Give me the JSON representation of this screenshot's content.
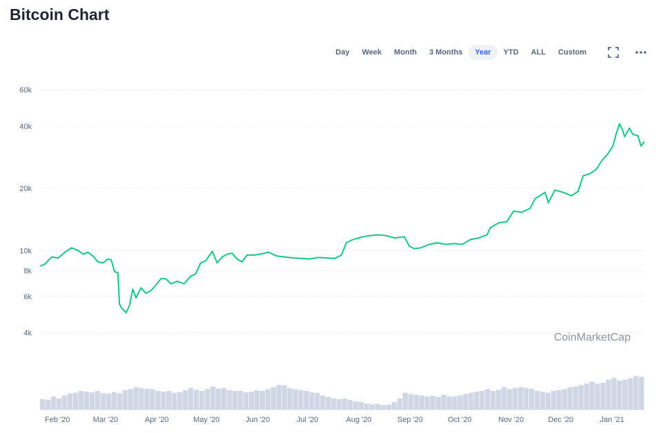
{
  "page": {
    "title": "Bitcoin Chart"
  },
  "toolbar": {
    "ranges": [
      {
        "label": "Day",
        "active": false
      },
      {
        "label": "Week",
        "active": false
      },
      {
        "label": "Month",
        "active": false
      },
      {
        "label": "3 Months",
        "active": false
      },
      {
        "label": "Year",
        "active": true
      },
      {
        "label": "YTD",
        "active": false
      },
      {
        "label": "ALL",
        "active": false
      },
      {
        "label": "Custom",
        "active": false
      }
    ],
    "fullscreen_icon": "fullscreen-icon",
    "more_icon": "more-options-icon"
  },
  "chart_data": {
    "type": "line",
    "title": "",
    "xlabel": "",
    "ylabel": "",
    "y_scale": "log",
    "ylim": [
      3000,
      70000
    ],
    "xlim": [
      "2020-01-24",
      "2021-01-23"
    ],
    "y_ticks": [
      {
        "value": 4000,
        "label": "4k"
      },
      {
        "value": 6000,
        "label": "6k"
      },
      {
        "value": 8000,
        "label": "8k"
      },
      {
        "value": 10000,
        "label": "10k"
      },
      {
        "value": 20000,
        "label": "20k"
      },
      {
        "value": 40000,
        "label": "40k"
      },
      {
        "value": 60000,
        "label": "60k"
      }
    ],
    "x_ticks": [
      {
        "date": "2020-02-01",
        "label": "Feb '20"
      },
      {
        "date": "2020-03-01",
        "label": "Mar '20"
      },
      {
        "date": "2020-04-01",
        "label": "Apr '20"
      },
      {
        "date": "2020-05-01",
        "label": "May '20"
      },
      {
        "date": "2020-06-01",
        "label": "Jun '20"
      },
      {
        "date": "2020-07-01",
        "label": "Jul '20"
      },
      {
        "date": "2020-08-01",
        "label": "Aug '20"
      },
      {
        "date": "2020-09-01",
        "label": "Sep '20"
      },
      {
        "date": "2020-10-01",
        "label": "Oct '20"
      },
      {
        "date": "2020-11-01",
        "label": "Nov '20"
      },
      {
        "date": "2020-12-01",
        "label": "Dec '20"
      },
      {
        "date": "2021-01-01",
        "label": "Jan '21"
      }
    ],
    "grid": true,
    "line_color": "#16c784",
    "volume_color": "#cfd6e4",
    "watermark": "CoinMarketCap",
    "series": [
      {
        "points": [
          [
            "2020-01-24",
            8400
          ],
          [
            "2020-01-27",
            8600
          ],
          [
            "2020-01-31",
            9300
          ],
          [
            "2020-02-04",
            9200
          ],
          [
            "2020-02-08",
            9800
          ],
          [
            "2020-02-12",
            10300
          ],
          [
            "2020-02-16",
            10000
          ],
          [
            "2020-02-19",
            9600
          ],
          [
            "2020-02-22",
            9800
          ],
          [
            "2020-02-25",
            9400
          ],
          [
            "2020-02-28",
            8800
          ],
          [
            "2020-03-02",
            8700
          ],
          [
            "2020-03-05",
            9100
          ],
          [
            "2020-03-07",
            9000
          ],
          [
            "2020-03-09",
            7900
          ],
          [
            "2020-03-11",
            7800
          ],
          [
            "2020-03-12",
            5500
          ],
          [
            "2020-03-13",
            5300
          ],
          [
            "2020-03-16",
            5000
          ],
          [
            "2020-03-18",
            5400
          ],
          [
            "2020-03-20",
            6500
          ],
          [
            "2020-03-22",
            5900
          ],
          [
            "2020-03-25",
            6600
          ],
          [
            "2020-03-28",
            6200
          ],
          [
            "2020-03-31",
            6400
          ],
          [
            "2020-04-03",
            6800
          ],
          [
            "2020-04-06",
            7300
          ],
          [
            "2020-04-09",
            7300
          ],
          [
            "2020-04-12",
            6900
          ],
          [
            "2020-04-16",
            7100
          ],
          [
            "2020-04-20",
            6900
          ],
          [
            "2020-04-24",
            7500
          ],
          [
            "2020-04-27",
            7700
          ],
          [
            "2020-04-30",
            8700
          ],
          [
            "2020-05-03",
            8900
          ],
          [
            "2020-05-07",
            9900
          ],
          [
            "2020-05-10",
            8700
          ],
          [
            "2020-05-13",
            9300
          ],
          [
            "2020-05-16",
            9600
          ],
          [
            "2020-05-19",
            9700
          ],
          [
            "2020-05-22",
            9100
          ],
          [
            "2020-05-25",
            8800
          ],
          [
            "2020-05-28",
            9500
          ],
          [
            "2020-06-01",
            9500
          ],
          [
            "2020-06-05",
            9600
          ],
          [
            "2020-06-10",
            9800
          ],
          [
            "2020-06-15",
            9400
          ],
          [
            "2020-06-20",
            9300
          ],
          [
            "2020-06-25",
            9200
          ],
          [
            "2020-06-30",
            9150
          ],
          [
            "2020-07-05",
            9100
          ],
          [
            "2020-07-10",
            9250
          ],
          [
            "2020-07-15",
            9200
          ],
          [
            "2020-07-20",
            9150
          ],
          [
            "2020-07-24",
            9500
          ],
          [
            "2020-07-27",
            10900
          ],
          [
            "2020-07-31",
            11300
          ],
          [
            "2020-08-05",
            11600
          ],
          [
            "2020-08-10",
            11800
          ],
          [
            "2020-08-15",
            11900
          ],
          [
            "2020-08-20",
            11800
          ],
          [
            "2020-08-25",
            11500
          ],
          [
            "2020-08-31",
            11650
          ],
          [
            "2020-09-03",
            10500
          ],
          [
            "2020-09-06",
            10200
          ],
          [
            "2020-09-10",
            10300
          ],
          [
            "2020-09-15",
            10700
          ],
          [
            "2020-09-20",
            10900
          ],
          [
            "2020-09-25",
            10700
          ],
          [
            "2020-09-30",
            10800
          ],
          [
            "2020-10-05",
            10700
          ],
          [
            "2020-10-10",
            11300
          ],
          [
            "2020-10-15",
            11500
          ],
          [
            "2020-10-20",
            11900
          ],
          [
            "2020-10-22",
            12900
          ],
          [
            "2020-10-27",
            13600
          ],
          [
            "2020-11-01",
            13800
          ],
          [
            "2020-11-05",
            15500
          ],
          [
            "2020-11-10",
            15300
          ],
          [
            "2020-11-15",
            16000
          ],
          [
            "2020-11-18",
            17800
          ],
          [
            "2020-11-24",
            19100
          ],
          [
            "2020-11-26",
            17000
          ],
          [
            "2020-11-30",
            19600
          ],
          [
            "2020-12-05",
            19100
          ],
          [
            "2020-12-10",
            18400
          ],
          [
            "2020-12-14",
            19300
          ],
          [
            "2020-12-17",
            23000
          ],
          [
            "2020-12-21",
            23500
          ],
          [
            "2020-12-25",
            24700
          ],
          [
            "2020-12-28",
            27000
          ],
          [
            "2021-01-01",
            29400
          ],
          [
            "2021-01-04",
            32000
          ],
          [
            "2021-01-06",
            36800
          ],
          [
            "2021-01-08",
            41000
          ],
          [
            "2021-01-10",
            38000
          ],
          [
            "2021-01-11",
            35500
          ],
          [
            "2021-01-14",
            39100
          ],
          [
            "2021-01-16",
            36500
          ],
          [
            "2021-01-19",
            36000
          ],
          [
            "2021-01-21",
            32000
          ],
          [
            "2021-01-23",
            33600
          ]
        ]
      }
    ],
    "volume": [
      0.28,
      0.26,
      0.35,
      0.3,
      0.38,
      0.43,
      0.45,
      0.5,
      0.48,
      0.46,
      0.5,
      0.44,
      0.43,
      0.47,
      0.44,
      0.52,
      0.55,
      0.6,
      0.58,
      0.56,
      0.55,
      0.5,
      0.48,
      0.5,
      0.45,
      0.47,
      0.52,
      0.58,
      0.53,
      0.5,
      0.55,
      0.62,
      0.56,
      0.58,
      0.52,
      0.5,
      0.5,
      0.46,
      0.48,
      0.52,
      0.5,
      0.55,
      0.6,
      0.66,
      0.65,
      0.58,
      0.55,
      0.52,
      0.5,
      0.46,
      0.45,
      0.38,
      0.34,
      0.3,
      0.28,
      0.3,
      0.25,
      0.22,
      0.2,
      0.16,
      0.14,
      0.15,
      0.12,
      0.13,
      0.2,
      0.3,
      0.45,
      0.42,
      0.4,
      0.38,
      0.35,
      0.37,
      0.34,
      0.4,
      0.36,
      0.35,
      0.38,
      0.42,
      0.45,
      0.48,
      0.5,
      0.55,
      0.5,
      0.53,
      0.6,
      0.55,
      0.58,
      0.6,
      0.58,
      0.56,
      0.5,
      0.48,
      0.45,
      0.5,
      0.52,
      0.55,
      0.6,
      0.62,
      0.66,
      0.7,
      0.75,
      0.7,
      0.72,
      0.8,
      0.85,
      0.78,
      0.8,
      0.84,
      0.9,
      0.88
    ]
  }
}
